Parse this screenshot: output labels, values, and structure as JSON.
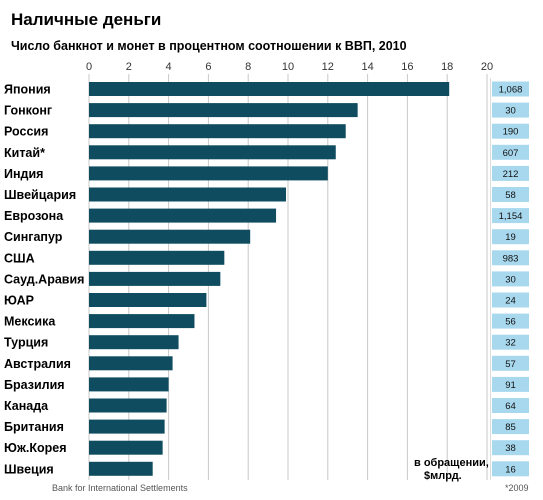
{
  "chart_data": {
    "type": "bar",
    "orientation": "horizontal",
    "title": "Наличные деньги",
    "subtitle": "Число банкнот и монет в процентном соотношении к ВВП, 2010",
    "xlim": [
      0,
      20
    ],
    "xticks": [
      0,
      2,
      4,
      6,
      8,
      10,
      12,
      14,
      16,
      18,
      20
    ],
    "grid": true,
    "categories": [
      "Япония",
      "Гонконг",
      "Россия",
      "Китай*",
      "Индия",
      "Швейцария",
      "Еврозона",
      "Сингапур",
      "США",
      "Сауд.Аравия",
      "ЮАР",
      "Мексика",
      "Турция",
      "Австралия",
      "Бразилия",
      "Канада",
      "Британия",
      "Юж.Корея",
      "Швеция"
    ],
    "values": [
      18.1,
      13.5,
      12.9,
      12.4,
      12.0,
      9.9,
      9.4,
      8.1,
      6.8,
      6.6,
      5.9,
      5.3,
      4.5,
      4.2,
      4.0,
      3.9,
      3.8,
      3.7,
      3.2
    ],
    "side_values": [
      "1,068",
      "30",
      "190",
      "607",
      "212",
      "58",
      "1,154",
      "19",
      "983",
      "30",
      "24",
      "56",
      "32",
      "57",
      "91",
      "64",
      "85",
      "38",
      "16"
    ],
    "side_label_line1": "в обращении,",
    "side_label_line2": "$млрд.",
    "source": "Bank for International Settlements",
    "footnote": "*2009",
    "colors": {
      "bar": "#0f4c60",
      "side_box": "#a8d8ee",
      "grid": "#c8c8c8"
    }
  }
}
